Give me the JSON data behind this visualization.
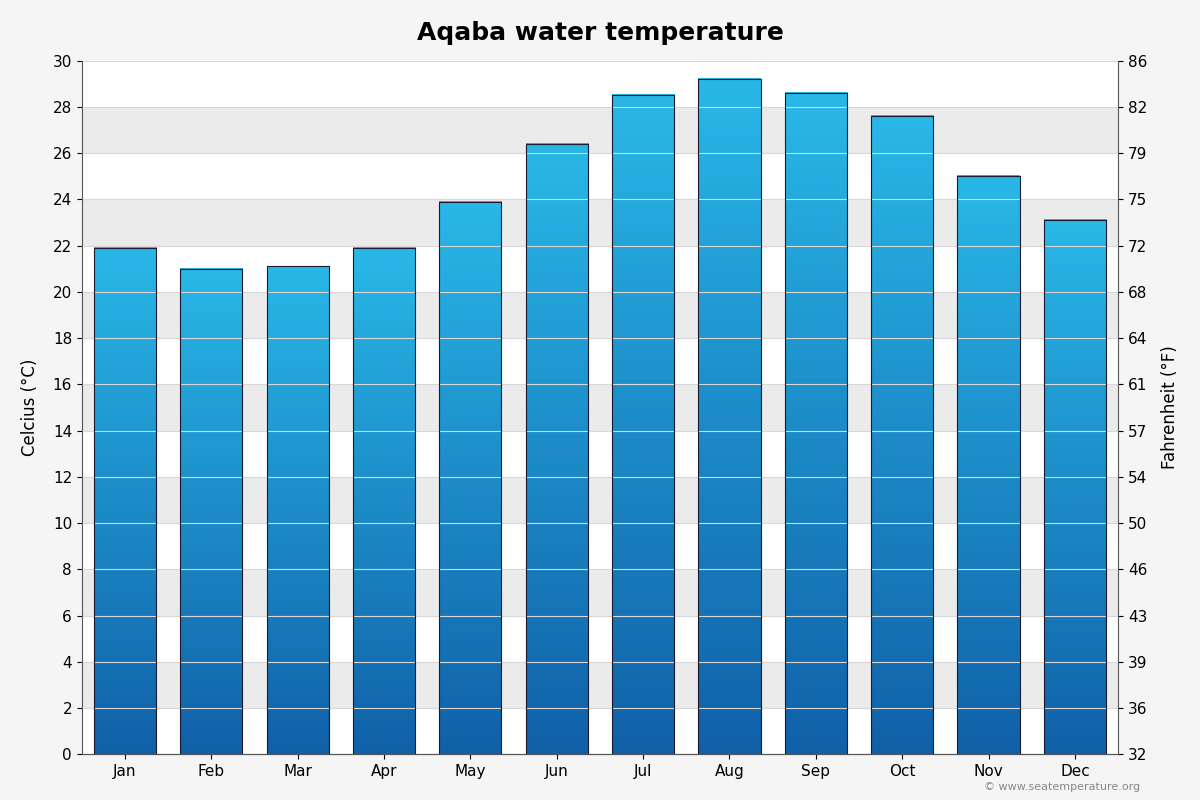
{
  "title": "Aqaba water temperature",
  "months": [
    "Jan",
    "Feb",
    "Mar",
    "Apr",
    "May",
    "Jun",
    "Jul",
    "Aug",
    "Sep",
    "Oct",
    "Nov",
    "Dec"
  ],
  "temps_c": [
    21.9,
    21.0,
    21.1,
    21.9,
    23.9,
    26.4,
    28.5,
    29.2,
    28.6,
    27.6,
    25.0,
    23.1
  ],
  "ylim_c": [
    0,
    30
  ],
  "yticks_c": [
    0,
    2,
    4,
    6,
    8,
    10,
    12,
    14,
    16,
    18,
    20,
    22,
    24,
    26,
    28,
    30
  ],
  "yticks_f": [
    32,
    36,
    39,
    43,
    46,
    50,
    54,
    57,
    61,
    64,
    68,
    72,
    75,
    79,
    82,
    86
  ],
  "ylabel_left": "Celcius (°C)",
  "ylabel_right": "Fahrenheit (°F)",
  "bar_color_top": "#29b8e8",
  "bar_color_bottom": "#1060a8",
  "bar_edge_color": "#1a1a2e",
  "bg_color": "#f5f5f5",
  "plot_bg_color": "#ffffff",
  "band_color_light": "#ffffff",
  "band_color_dark": "#ebebeb",
  "grid_line_color": "#d8d8d8",
  "copyright_text": "© www.seatemperature.org",
  "title_fontsize": 18,
  "label_fontsize": 12,
  "tick_fontsize": 11,
  "bar_width": 0.72
}
